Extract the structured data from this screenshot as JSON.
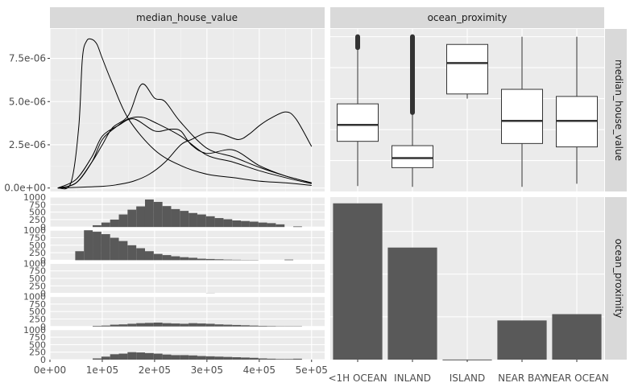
{
  "chart_data": {
    "type": "pairs-matrix",
    "variables": [
      "median_house_value",
      "ocean_proximity"
    ],
    "categories": [
      "<1H OCEAN",
      "INLAND",
      "ISLAND",
      "NEAR BAY",
      "NEAR OCEAN"
    ],
    "colors": {
      "panel_bg": "#ebebeb",
      "strip_bg": "#d9d9d9",
      "grid_major": "#ffffff",
      "mark_fill": "#595959",
      "line": "#000000"
    },
    "density_panel": {
      "type": "line",
      "xlim": [
        0,
        525000
      ],
      "ylim": [
        -2e-07,
        9.2e-06
      ],
      "y_ticks": [
        0,
        2.5e-06,
        5e-06,
        7.5e-06
      ],
      "y_tick_labels": [
        "0.0e+00",
        "2.5e-06",
        "5.0e-06",
        "7.5e-06"
      ],
      "series": [
        {
          "x": [
            15000,
            40000,
            55000,
            62000,
            70000,
            80000,
            90000,
            100000,
            120000,
            150000,
            200000,
            250000,
            300000,
            350000,
            400000,
            450000,
            500000
          ],
          "y": [
            0,
            3e-07,
            3.5e-06,
            7.5e-06,
            8.5e-06,
            8.6e-06,
            8.3e-06,
            7.5e-06,
            6e-06,
            4e-06,
            2.2e-06,
            1.3e-06,
            8e-07,
            6e-07,
            4e-07,
            3e-07,
            1.5e-07
          ]
        },
        {
          "x": [
            15000,
            50000,
            80000,
            100000,
            120000,
            150000,
            175000,
            200000,
            220000,
            250000,
            300000,
            350000,
            400000,
            450000,
            500000
          ],
          "y": [
            0,
            3e-07,
            1.5e-06,
            2.5e-06,
            3.5e-06,
            4.2e-06,
            6e-06,
            5.2e-06,
            5e-06,
            3.8e-06,
            2.3e-06,
            1.8e-06,
            1.2e-06,
            7e-07,
            3e-07
          ]
        },
        {
          "x": [
            15000,
            50000,
            80000,
            100000,
            125000,
            150000,
            175000,
            200000,
            250000,
            300000,
            350000,
            400000,
            450000,
            500000
          ],
          "y": [
            0,
            3e-07,
            1.5e-06,
            2.8e-06,
            3.5e-06,
            4e-06,
            4.1e-06,
            3.8e-06,
            3e-06,
            1.9e-06,
            1.5e-06,
            1e-06,
            6e-07,
            2.5e-07
          ]
        },
        {
          "x": [
            15000,
            50000,
            80000,
            100000,
            130000,
            160000,
            200000,
            230000,
            250000,
            270000,
            300000,
            350000,
            400000,
            450000,
            500000
          ],
          "y": [
            0,
            5e-07,
            1.8e-06,
            3e-06,
            3.6e-06,
            4e-06,
            3.3e-06,
            3.4e-06,
            3.3e-06,
            2.5e-06,
            2e-06,
            2.2e-06,
            1.3e-06,
            7e-07,
            3e-07
          ]
        },
        {
          "x": [
            15000,
            100000,
            130000,
            160000,
            190000,
            220000,
            250000,
            270000,
            300000,
            330000,
            360000,
            380000,
            400000,
            420000,
            450000,
            470000,
            500000
          ],
          "y": [
            0,
            1e-07,
            2e-07,
            4e-07,
            8e-07,
            1.5e-06,
            2.5e-06,
            2.8e-06,
            3.2e-06,
            3.1e-06,
            2.8e-06,
            3.1e-06,
            3.6e-06,
            4e-06,
            4.4e-06,
            4e-06,
            2.4e-06
          ]
        }
      ]
    },
    "boxplot_panel": {
      "type": "boxplot",
      "orientation": "vertical",
      "ylim": [
        0,
        525000
      ],
      "boxes": [
        {
          "category": "<1H OCEAN",
          "lower": 17500,
          "q1": 162000,
          "median": 215000,
          "q3": 283000,
          "upper": 465000,
          "outliers_from": 465000,
          "outliers_to": 500001
        },
        {
          "category": "INLAND",
          "lower": 15000,
          "q1": 77000,
          "median": 108000,
          "q3": 148000,
          "upper": 255000,
          "outliers_from": 255000,
          "outliers_to": 500001
        },
        {
          "category": "ISLAND",
          "lower": 300000,
          "q1": 315000,
          "median": 415000,
          "q3": 475000,
          "upper": 475000,
          "outliers_from": null,
          "outliers_to": null
        },
        {
          "category": "NEAR BAY",
          "lower": 15000,
          "q1": 155000,
          "median": 228000,
          "q3": 330000,
          "upper": 500001,
          "outliers_from": null,
          "outliers_to": null
        },
        {
          "category": "NEAR OCEAN",
          "lower": 25000,
          "q1": 144000,
          "median": 228000,
          "q3": 307000,
          "upper": 500001,
          "outliers_from": null,
          "outliers_to": null
        }
      ]
    },
    "histogram_panel": {
      "type": "bar",
      "xlim": [
        0,
        525000
      ],
      "x_ticks": [
        0,
        100000,
        200000,
        300000,
        400000,
        500000
      ],
      "x_tick_labels": [
        "0e+00",
        "1e+05",
        "2e+05",
        "3e+05",
        "4e+05",
        "5e+05"
      ],
      "ylim": [
        0,
        1000
      ],
      "y_ticks": [
        0,
        250,
        500,
        750,
        1000
      ],
      "y_tick_labels": [
        "0",
        "250",
        "500",
        "750",
        "1000"
      ],
      "bin_width": 16667,
      "bins_start": 15000,
      "rows": [
        {
          "category": "<1H OCEAN",
          "counts": [
            0,
            0,
            0,
            0,
            60,
            150,
            250,
            420,
            580,
            690,
            920,
            840,
            700,
            600,
            540,
            470,
            420,
            360,
            300,
            260,
            220,
            200,
            180,
            150,
            130,
            90,
            0,
            20
          ]
        },
        {
          "category": "INLAND",
          "counts": [
            0,
            0,
            300,
            1000,
            950,
            870,
            750,
            640,
            500,
            400,
            300,
            210,
            170,
            130,
            100,
            80,
            50,
            40,
            30,
            20,
            15,
            10,
            10,
            0,
            0,
            0,
            20,
            0
          ]
        },
        {
          "category": "ISLAND",
          "counts": [
            0,
            0,
            0,
            0,
            0,
            0,
            0,
            0,
            0,
            0,
            0,
            0,
            0,
            0,
            0,
            0,
            0,
            5,
            0,
            0,
            0,
            0,
            0,
            0,
            0,
            0,
            0,
            0
          ]
        },
        {
          "category": "NEAR BAY",
          "counts": [
            0,
            0,
            0,
            0,
            20,
            30,
            60,
            70,
            90,
            110,
            120,
            130,
            110,
            100,
            90,
            110,
            100,
            90,
            70,
            60,
            50,
            40,
            30,
            20,
            15,
            10,
            10,
            10
          ]
        },
        {
          "category": "NEAR OCEAN",
          "counts": [
            0,
            0,
            0,
            0,
            40,
            100,
            180,
            200,
            250,
            240,
            220,
            200,
            170,
            150,
            150,
            140,
            120,
            110,
            100,
            90,
            80,
            70,
            60,
            40,
            30,
            20,
            20,
            30
          ]
        }
      ]
    },
    "count_panel": {
      "type": "bar",
      "ylim": [
        0,
        9500
      ],
      "values": [
        9136,
        6551,
        5,
        2290,
        2658
      ]
    }
  }
}
